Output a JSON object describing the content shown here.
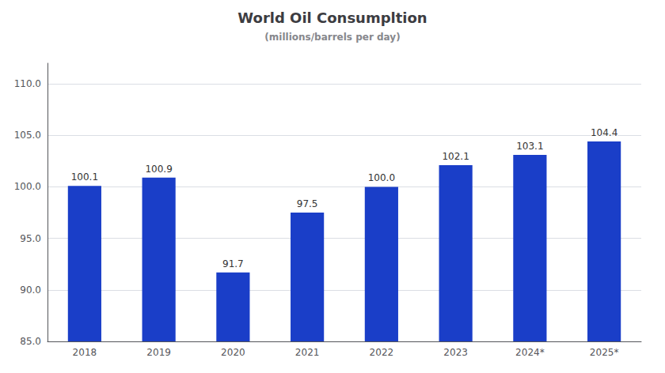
{
  "chart_data": {
    "type": "bar",
    "title": "World Oil Consumpltion",
    "subtitle": "(millions/barrels per day)",
    "categories": [
      "2018",
      "2019",
      "2020",
      "2021",
      "2022",
      "2023",
      "2024*",
      "2025*"
    ],
    "values": [
      100.1,
      100.9,
      91.7,
      97.5,
      100.0,
      102.1,
      103.1,
      104.4
    ],
    "value_labels": [
      "100.1",
      "100.9",
      "91.7",
      "97.5",
      "100.0",
      "102.1",
      "103.1",
      "104.4"
    ],
    "color": "#1a3ec8",
    "ylim": [
      85.0,
      112.0
    ],
    "yticks": [
      {
        "value": 85.0,
        "label": "85.0"
      },
      {
        "value": 90.0,
        "label": "90.0"
      },
      {
        "value": 95.0,
        "label": "95.0"
      },
      {
        "value": 100.0,
        "label": "100.0"
      },
      {
        "value": 105.0,
        "label": "105.0"
      },
      {
        "value": 110.0,
        "label": "110.0"
      }
    ],
    "grid": true,
    "data_labels": true
  }
}
